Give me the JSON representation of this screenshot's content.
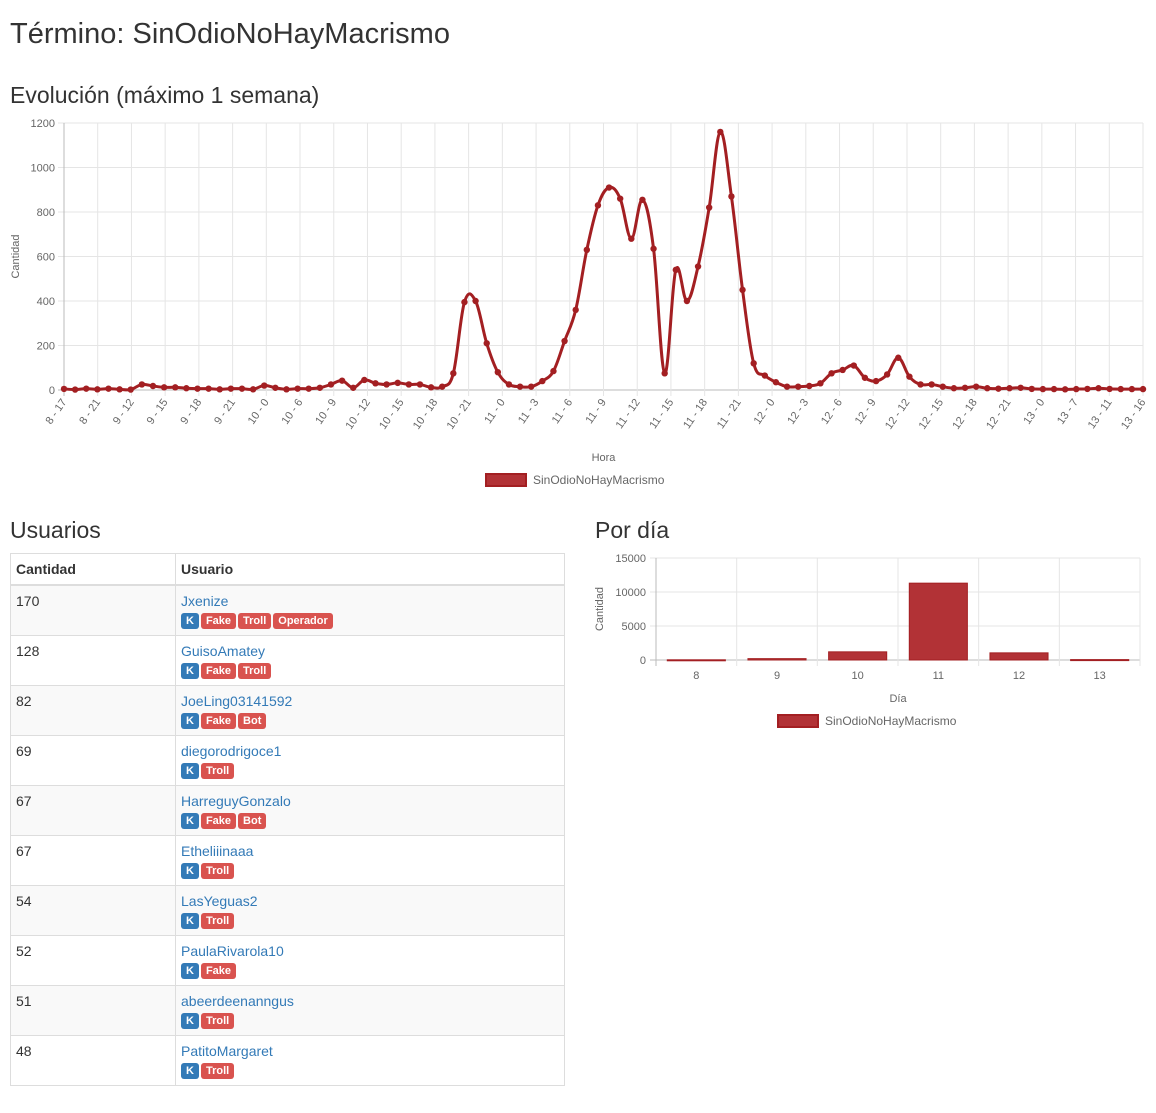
{
  "page": {
    "title": "Término: SinOdioNoHayMacrismo",
    "evolution_title": "Evolución (máximo 1 semana)",
    "users_title": "Usuarios",
    "per_day_title": "Por día"
  },
  "colors": {
    "series": "#a31f22",
    "series_fill": "#b23236",
    "link": "#337ab7",
    "badge_blue": "#337ab7",
    "badge_red": "#d9534f"
  },
  "users_table": {
    "headers": [
      "Cantidad",
      "Usuario"
    ],
    "rows": [
      {
        "cantidad": "170",
        "usuario": "Jxenize",
        "badges": [
          "K",
          "Fake",
          "Troll",
          "Operador"
        ]
      },
      {
        "cantidad": "128",
        "usuario": "GuisoAmatey",
        "badges": [
          "K",
          "Fake",
          "Troll"
        ]
      },
      {
        "cantidad": "82",
        "usuario": "JoeLing03141592",
        "badges": [
          "K",
          "Fake",
          "Bot"
        ]
      },
      {
        "cantidad": "69",
        "usuario": "diegorodrigoce1",
        "badges": [
          "K",
          "Troll"
        ]
      },
      {
        "cantidad": "67",
        "usuario": "HarreguyGonzalo",
        "badges": [
          "K",
          "Fake",
          "Bot"
        ]
      },
      {
        "cantidad": "67",
        "usuario": "Etheliiinaaa",
        "badges": [
          "K",
          "Troll"
        ]
      },
      {
        "cantidad": "54",
        "usuario": "LasYeguas2",
        "badges": [
          "K",
          "Troll"
        ]
      },
      {
        "cantidad": "52",
        "usuario": "PaulaRivarola10",
        "badges": [
          "K",
          "Fake"
        ]
      },
      {
        "cantidad": "51",
        "usuario": "abeerdeenanngus",
        "badges": [
          "K",
          "Troll"
        ]
      },
      {
        "cantidad": "48",
        "usuario": "PatitoMargaret",
        "badges": [
          "K",
          "Troll"
        ]
      }
    ]
  },
  "chart_data": [
    {
      "type": "line",
      "xlabel": "Hora",
      "ylabel": "Cantidad",
      "ylim": [
        0,
        1200
      ],
      "yticks": [
        0,
        200,
        400,
        600,
        800,
        1000,
        1200
      ],
      "x_tick_labels": [
        "8 - 17",
        "8 - 21",
        "9 - 12",
        "9 - 15",
        "9 - 18",
        "9 - 21",
        "10 - 0",
        "10 - 6",
        "10 - 9",
        "10 - 12",
        "10 - 15",
        "10 - 18",
        "10 - 21",
        "11 - 0",
        "11 - 3",
        "11 - 6",
        "11 - 9",
        "11 - 12",
        "11 - 15",
        "11 - 18",
        "11 - 21",
        "12 - 0",
        "12 - 3",
        "12 - 6",
        "12 - 9",
        "12 - 12",
        "12 - 15",
        "12 - 18",
        "12 - 21",
        "13 - 0",
        "13 - 7",
        "13 - 11",
        "13 - 16"
      ],
      "grid": true,
      "legend": "bottom",
      "series": [
        {
          "name": "SinOdioNoHayMacrismo",
          "values": [
            5,
            2,
            6,
            3,
            6,
            3,
            2,
            25,
            18,
            12,
            12,
            8,
            6,
            6,
            3,
            6,
            6,
            3,
            20,
            10,
            3,
            6,
            6,
            10,
            25,
            42,
            10,
            45,
            30,
            25,
            32,
            25,
            25,
            12,
            15,
            75,
            395,
            400,
            210,
            80,
            25,
            15,
            15,
            40,
            85,
            220,
            360,
            630,
            830,
            910,
            860,
            680,
            855,
            635,
            75,
            540,
            400,
            555,
            820,
            1160,
            870,
            450,
            120,
            65,
            35,
            15,
            15,
            18,
            30,
            75,
            90,
            110,
            55,
            40,
            70,
            145,
            60,
            25,
            25,
            15,
            8,
            10,
            15,
            8,
            6,
            8,
            10,
            5,
            4,
            4,
            3,
            4,
            5,
            8,
            5,
            4,
            4,
            4
          ]
        }
      ]
    },
    {
      "type": "bar",
      "xlabel": "Día",
      "ylabel": "Cantidad",
      "ylim": [
        0,
        15000
      ],
      "yticks": [
        0,
        5000,
        10000,
        15000
      ],
      "categories": [
        "8",
        "9",
        "10",
        "11",
        "12",
        "13"
      ],
      "grid": true,
      "legend": "bottom",
      "series": [
        {
          "name": "SinOdioNoHayMacrismo",
          "values": [
            30,
            200,
            1200,
            11300,
            1050,
            60
          ]
        }
      ]
    }
  ]
}
